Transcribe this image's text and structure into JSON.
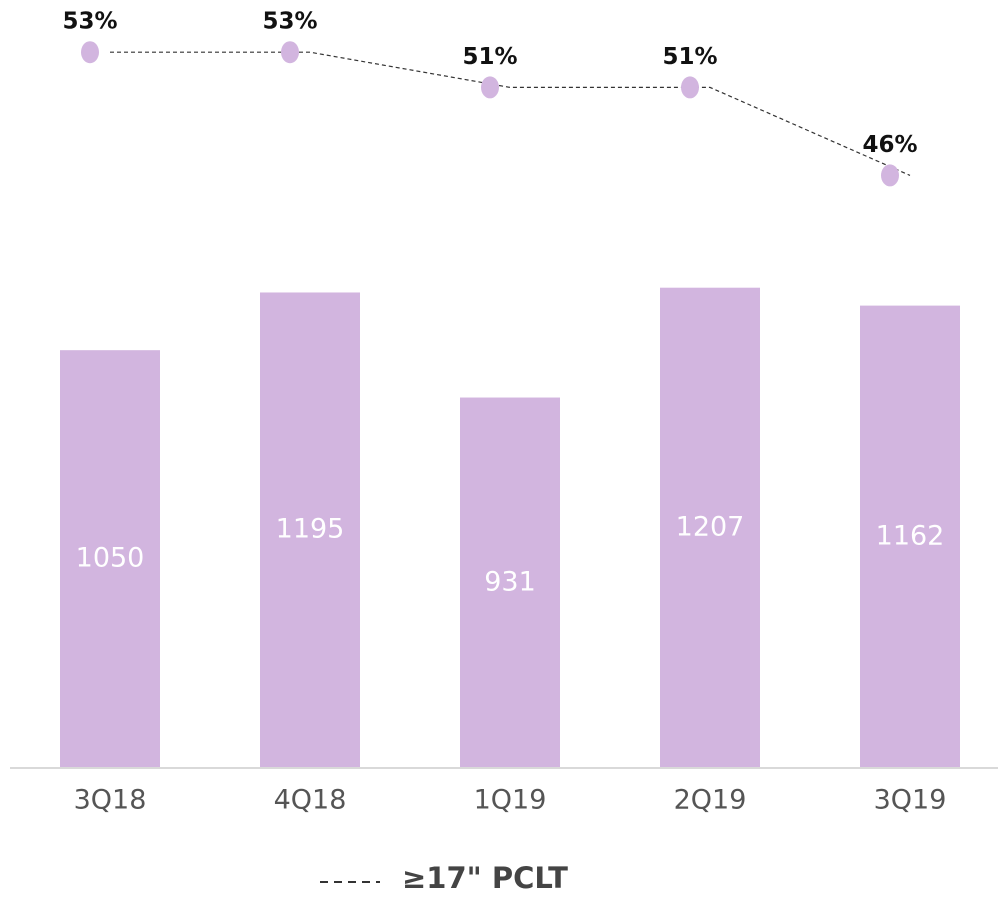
{
  "chart_data": {
    "type": "bar",
    "categories": [
      "3Q18",
      "4Q18",
      "1Q19",
      "2Q19",
      "3Q19"
    ],
    "series": [
      {
        "color": "#d2b5df",
        "values": [
          1050,
          1195,
          931,
          1207,
          1162
        ]
      },
      {
        "name": "≥17\" PCLT",
        "type": "line",
        "axis": "y2",
        "color": "#d2b5df",
        "values": [
          53,
          53,
          51,
          51,
          46
        ],
        "value_labels": [
          "53%",
          "53%",
          "51%",
          "51%",
          "46%"
        ]
      }
    ],
    "ylim": [
      0,
      1930
    ],
    "y2lim": [
      40,
      55
    ]
  }
}
